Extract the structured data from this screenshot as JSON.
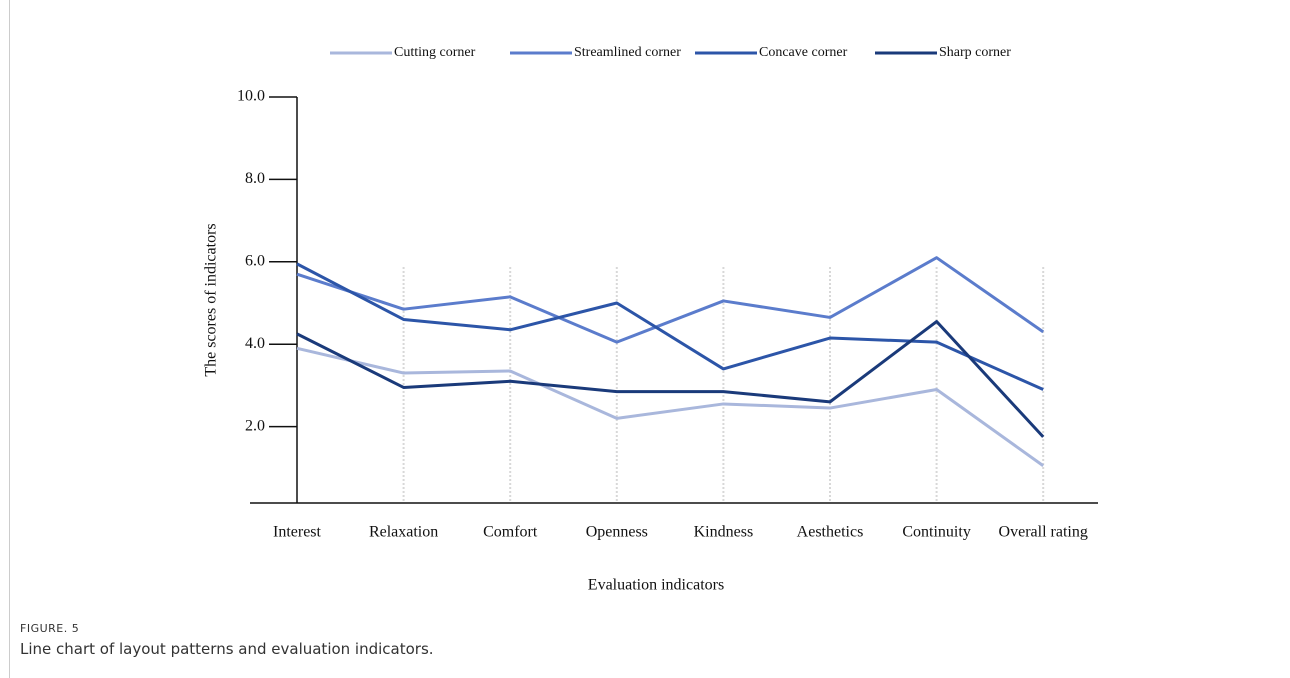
{
  "figure_label": "FIGURE. 5",
  "caption": "Line chart of layout patterns and evaluation indicators.",
  "chart_data": {
    "type": "line",
    "xlabel": "Evaluation indicators",
    "ylabel": "The scores of indicators",
    "categories": [
      "Interest",
      "Relaxation",
      "Comfort",
      "Openness",
      "Kindness",
      "Aesthetics",
      "Continuity",
      "Overall rating"
    ],
    "series": [
      {
        "name": "Cutting corner",
        "color": "#a9b7dc",
        "values": [
          3.9,
          3.3,
          3.35,
          2.2,
          2.55,
          2.45,
          2.9,
          1.05
        ]
      },
      {
        "name": "Streamlined corner",
        "color": "#5b7ccc",
        "values": [
          5.7,
          4.85,
          5.15,
          4.05,
          5.05,
          4.65,
          6.1,
          4.3
        ]
      },
      {
        "name": "Concave corner",
        "color": "#2c55a8",
        "values": [
          5.95,
          4.6,
          4.35,
          5.0,
          3.4,
          4.15,
          4.05,
          2.9
        ]
      },
      {
        "name": "Sharp corner",
        "color": "#1a3a7a",
        "values": [
          4.25,
          2.95,
          3.1,
          2.85,
          2.85,
          2.6,
          4.55,
          1.75
        ]
      }
    ],
    "ylim": [
      0,
      10
    ],
    "yticks": [
      {
        "value": 2,
        "label": "2.0"
      },
      {
        "value": 4,
        "label": "4.0"
      },
      {
        "value": 6,
        "label": "6.0"
      },
      {
        "value": 8,
        "label": "8.0"
      },
      {
        "value": 10,
        "label": "10.0"
      }
    ],
    "grid": true,
    "legend": "top"
  }
}
